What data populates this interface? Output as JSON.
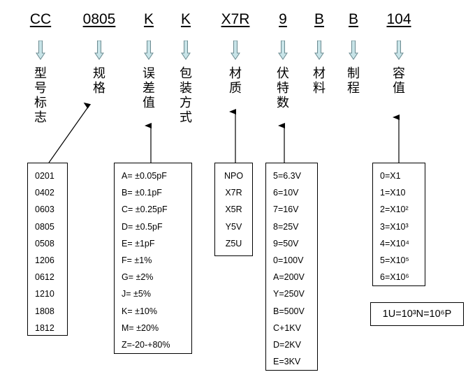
{
  "codes": [
    {
      "code": "CC",
      "label": "型号标志"
    },
    {
      "code": "0805",
      "label": "规格"
    },
    {
      "code": "K",
      "label": "误差值"
    },
    {
      "code": "K",
      "label": "包装方式"
    },
    {
      "code": "X7R",
      "label": "材质"
    },
    {
      "code": "9",
      "label": "伏特数"
    },
    {
      "code": "B",
      "label": "材料"
    },
    {
      "code": "B",
      "label": "制程"
    },
    {
      "code": "104",
      "label": "容值"
    }
  ],
  "sizes": [
    "0201",
    "0402",
    "0603",
    "0805",
    "0508",
    "1206",
    "0612",
    "1210",
    "1808",
    "1812"
  ],
  "tolerances": [
    "A= ±0.05pF",
    "B= ±0.1pF",
    "C= ±0.25pF",
    "D= ±0.5pF",
    "E= ±1pF",
    "F= ±1%",
    "G= ±2%",
    "J= ±5%",
    "K= ±10%",
    "M= ±20%",
    "Z=-20-+80%"
  ],
  "materials": [
    "NPO",
    "X7R",
    "X5R",
    "Y5V",
    "Z5U"
  ],
  "voltages": [
    "5=6.3V",
    "6=10V",
    "7=16V",
    "8=25V",
    "9=50V",
    "0=100V",
    "A=200V",
    "Y=250V",
    "B=500V",
    "C+1KV",
    "D=2KV",
    "E=3KV"
  ],
  "multipliers": [
    "0=X1",
    "1=X10",
    "2=X10²",
    "3=X10³",
    "4=X10⁴",
    "5=X10⁵",
    "6=X10⁶"
  ],
  "formula": "1U=10³N=10⁶P",
  "colors": {
    "hollow_arrow_fill": "#c8e4e8",
    "hollow_arrow_stroke": "#6a8a90"
  }
}
